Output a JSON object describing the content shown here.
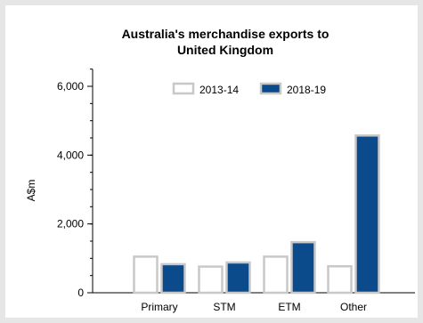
{
  "chart_data": {
    "type": "bar",
    "title_lines": [
      "Australia's merchandise exports to",
      "United Kingdom"
    ],
    "xlabel": "",
    "ylabel": "A$m",
    "categories": [
      "Primary",
      "STM",
      "ETM",
      "Other"
    ],
    "series": [
      {
        "name": "2013-14",
        "values": [
          1050,
          760,
          1050,
          770
        ],
        "fill": "#ffffff",
        "stroke": "#c8c8c8"
      },
      {
        "name": "2018-19",
        "values": [
          830,
          880,
          1470,
          4570
        ],
        "fill": "#0b4a8b",
        "stroke": "#c8c8c8"
      }
    ],
    "ylim": [
      0,
      6500
    ],
    "yticks": [
      0,
      2000,
      4000,
      6000
    ],
    "ytick_labels": [
      "0",
      "2,000",
      "4,000",
      "6,000"
    ],
    "grid": false,
    "legend_position": "top-right"
  }
}
